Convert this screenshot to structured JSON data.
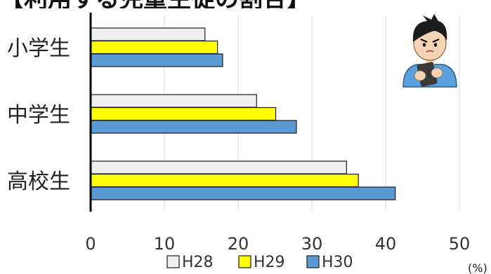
{
  "title": "【利用する児童生徒の割合】",
  "legend": [
    {
      "label": "H28",
      "color": "#efefef"
    },
    {
      "label": "H29",
      "color": "#ffff00"
    },
    {
      "label": "H30",
      "color": "#5b9bd5"
    }
  ],
  "unit_label": "(%)",
  "illustration": "boy-using-smartphone-icon",
  "chart_data": {
    "type": "bar",
    "orientation": "horizontal",
    "categories": [
      "小学生",
      "中学生",
      "高校生"
    ],
    "series": [
      {
        "name": "H28",
        "color": "#efefef",
        "values": [
          15.5,
          22.5,
          34.7
        ]
      },
      {
        "name": "H29",
        "color": "#ffff00",
        "values": [
          17.2,
          25.1,
          36.3
        ]
      },
      {
        "name": "H30",
        "color": "#5b9bd5",
        "values": [
          17.9,
          27.9,
          41.3
        ]
      }
    ],
    "xlim": [
      0,
      50
    ],
    "xticks": [
      0,
      10,
      20,
      30,
      40,
      50
    ],
    "xlabel": "(%)",
    "grid": true,
    "legend_position": "bottom"
  }
}
